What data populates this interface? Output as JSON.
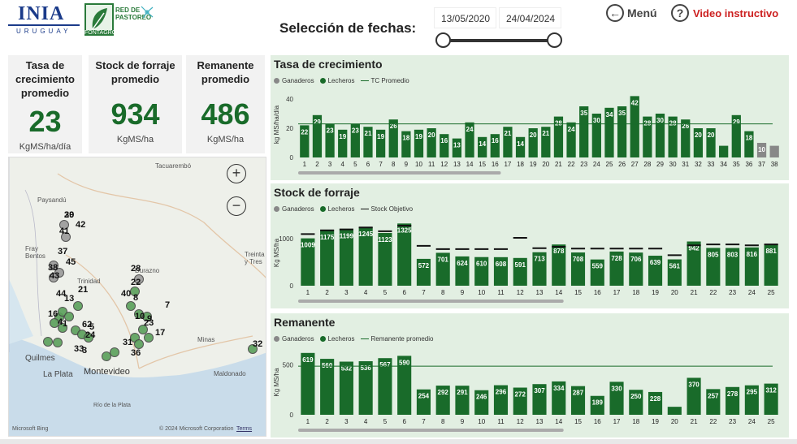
{
  "header": {
    "logo1_word": "INIA",
    "logo1_sub": "URUGUAY",
    "logo2_text": "RED DE PASTOREO",
    "logo2_sub": "FONTAGRO",
    "date_title": "Selección de fechas:",
    "date_from": "13/05/2020",
    "date_to": "24/04/2024",
    "menu_label": "Menú",
    "video_label": "Video instructivo"
  },
  "kpis": [
    {
      "title": "Tasa de crecimiento promedio",
      "value": "23",
      "unit": "KgMS/ha/día"
    },
    {
      "title": "Stock de forraje promedio",
      "value": "934",
      "unit": "KgMS/ha"
    },
    {
      "title": "Remanente promedio",
      "value": "486",
      "unit": "KgMS/ha"
    }
  ],
  "map": {
    "labels": [
      "Tacuarembó",
      "Paysandú",
      "Fray Bentos",
      "Trinidad",
      "Durazno",
      "Treinta y Tres",
      "Minas",
      "Maldonado",
      "Montevideo",
      "Quilmes",
      "La Plata",
      "Río de la Plata"
    ],
    "points": [
      "20",
      "42",
      "41",
      "37",
      "45",
      "38",
      "43",
      "28",
      "22",
      "21",
      "8",
      "40",
      "44",
      "13",
      "16",
      "4",
      "1",
      "62",
      "5",
      "7",
      "10",
      "23",
      "9",
      "17",
      "24",
      "31",
      "33",
      "3",
      "36",
      "32",
      "39"
    ],
    "attribution": "© 2024 Microsoft Corporation",
    "terms": "Terms",
    "brand": "Microsoft Bing",
    "zoom_in": "+",
    "zoom_out": "−"
  },
  "colors": {
    "lechero": "#196b2a",
    "ganadero": "#888888",
    "panel_bg": "#e2efe2"
  },
  "chart_data": [
    {
      "type": "bar",
      "title": "Tasa de crecimiento",
      "ylabel": "kg MS/ha/día",
      "legend": [
        "Ganaderos",
        "Lecheros",
        "TC Promedio"
      ],
      "ylim": [
        0,
        45
      ],
      "yticks": [
        0,
        20,
        40
      ],
      "categories": [
        "1",
        "2",
        "3",
        "4",
        "5",
        "6",
        "7",
        "8",
        "9",
        "10",
        "11",
        "12",
        "13",
        "14",
        "15",
        "16",
        "17",
        "18",
        "19",
        "20",
        "21",
        "22",
        "23",
        "24",
        "25",
        "26",
        "27",
        "28",
        "29",
        "30",
        "31",
        "32",
        "33",
        "34",
        "35",
        "36",
        "37",
        "38"
      ],
      "values": [
        22,
        29,
        23,
        19,
        23,
        21,
        19,
        26,
        18,
        19,
        20,
        16,
        13,
        24,
        14,
        16,
        21,
        14,
        20,
        21,
        28,
        24,
        35,
        30,
        34,
        35,
        42,
        28,
        30,
        28,
        26,
        20,
        20,
        8,
        29,
        18,
        10,
        8
      ],
      "ganaderos_idx": [
        37,
        38
      ],
      "labels_shown": [
        22,
        29,
        23,
        19,
        23,
        21,
        19,
        26,
        18,
        19,
        20,
        16,
        13,
        24,
        14,
        16,
        21,
        14,
        20,
        21,
        28,
        24,
        35,
        30,
        34,
        35,
        42,
        28,
        30,
        28,
        26,
        20,
        20,
        null,
        29,
        18,
        10,
        null
      ],
      "reference_line": 23
    },
    {
      "type": "bar",
      "title": "Stock de forraje",
      "ylabel": "Kg MS/ha",
      "legend": [
        "Ganaderos",
        "Lecheros",
        "Stock Objetivo"
      ],
      "ylim": [
        0,
        1400
      ],
      "yticks": [
        0,
        1000
      ],
      "categories": [
        "1",
        "2",
        "3",
        "4",
        "5",
        "6",
        "7",
        "8",
        "9",
        "10",
        "11",
        "12",
        "13",
        "14",
        "15",
        "16",
        "17",
        "18",
        "19",
        "20",
        "21",
        "22",
        "23",
        "24",
        "25"
      ],
      "values": [
        1009,
        1175,
        1199,
        1245,
        1123,
        1325,
        572,
        701,
        624,
        610,
        608,
        591,
        713,
        878,
        708,
        559,
        728,
        706,
        639,
        561,
        942,
        805,
        803,
        816,
        881
      ],
      "targets": [
        1100,
        1180,
        1200,
        1240,
        1160,
        1280,
        850,
        780,
        780,
        780,
        780,
        1020,
        800,
        830,
        790,
        790,
        790,
        790,
        790,
        650,
        860,
        880,
        880,
        860,
        880
      ]
    },
    {
      "type": "bar",
      "title": "Remanente",
      "ylabel": "Kg MS/ha",
      "legend": [
        "Ganaderos",
        "Lecheros",
        "Remanente promedio"
      ],
      "ylim": [
        0,
        650
      ],
      "yticks": [
        0,
        500
      ],
      "categories": [
        "1",
        "2",
        "3",
        "4",
        "5",
        "6",
        "7",
        "8",
        "9",
        "10",
        "11",
        "12",
        "13",
        "14",
        "15",
        "16",
        "17",
        "18",
        "19",
        "20",
        "21",
        "22",
        "23",
        "24",
        "25"
      ],
      "values": [
        619,
        560,
        532,
        536,
        567,
        590,
        254,
        292,
        291,
        246,
        296,
        272,
        307,
        334,
        287,
        189,
        330,
        250,
        228,
        null,
        370,
        257,
        278,
        295,
        312
      ],
      "labels_shown": [
        "619",
        "560",
        "532",
        "536",
        "567",
        "590",
        "254",
        "292",
        "291",
        "246",
        "296",
        "272",
        "307",
        "334",
        "287",
        "189",
        "330",
        "250",
        "228",
        "",
        "370",
        "257",
        "278",
        "295",
        "312"
      ],
      "value_20": 80,
      "reference_line": 486
    }
  ]
}
